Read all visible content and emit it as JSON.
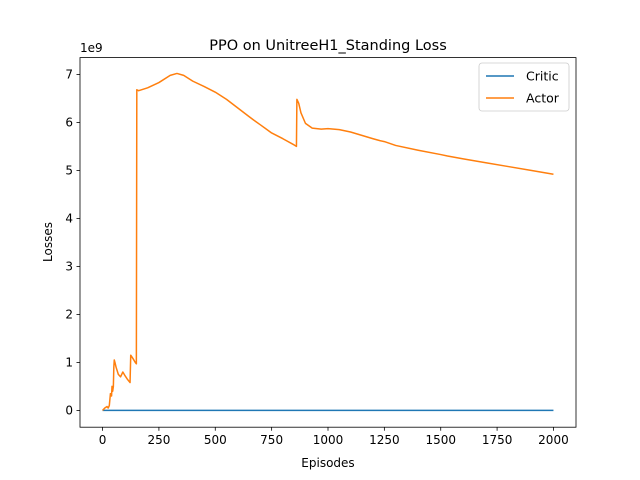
{
  "chart_data": {
    "type": "line",
    "title": "PPO on UnitreeH1_Standing Loss",
    "xlabel": "Episodes",
    "ylabel": "Losses",
    "y_scale_label": "1e9",
    "xlim": [
      -100,
      2100
    ],
    "ylim": [
      -0.35,
      7.35
    ],
    "x_ticks": [
      0,
      250,
      500,
      750,
      1000,
      1250,
      1500,
      1750,
      2000
    ],
    "y_ticks": [
      0,
      1,
      2,
      3,
      4,
      5,
      6,
      7
    ],
    "legend_position": "top-right",
    "grid": false,
    "series": [
      {
        "name": "Critic",
        "color": "#1f77b4",
        "points": [
          [
            0,
            0.0
          ],
          [
            2000,
            0.0
          ]
        ]
      },
      {
        "name": "Actor",
        "color": "#ff7f0e",
        "points": [
          [
            0,
            0.0
          ],
          [
            10,
            0.05
          ],
          [
            20,
            0.08
          ],
          [
            25,
            0.05
          ],
          [
            30,
            0.1
          ],
          [
            35,
            0.35
          ],
          [
            40,
            0.3
          ],
          [
            42,
            0.5
          ],
          [
            45,
            0.4
          ],
          [
            48,
            0.5
          ],
          [
            50,
            0.9
          ],
          [
            52,
            1.05
          ],
          [
            55,
            1.0
          ],
          [
            60,
            0.9
          ],
          [
            70,
            0.75
          ],
          [
            80,
            0.7
          ],
          [
            90,
            0.8
          ],
          [
            100,
            0.72
          ],
          [
            110,
            0.65
          ],
          [
            122,
            0.58
          ],
          [
            125,
            1.15
          ],
          [
            135,
            1.08
          ],
          [
            145,
            1.0
          ],
          [
            150,
            0.97
          ],
          [
            152,
            6.68
          ],
          [
            160,
            6.66
          ],
          [
            200,
            6.72
          ],
          [
            250,
            6.83
          ],
          [
            300,
            6.98
          ],
          [
            330,
            7.02
          ],
          [
            360,
            6.98
          ],
          [
            400,
            6.86
          ],
          [
            450,
            6.75
          ],
          [
            500,
            6.63
          ],
          [
            550,
            6.48
          ],
          [
            600,
            6.3
          ],
          [
            650,
            6.12
          ],
          [
            670,
            6.05
          ],
          [
            700,
            5.95
          ],
          [
            750,
            5.78
          ],
          [
            800,
            5.66
          ],
          [
            850,
            5.53
          ],
          [
            860,
            5.5
          ],
          [
            862,
            6.48
          ],
          [
            870,
            6.4
          ],
          [
            880,
            6.2
          ],
          [
            900,
            5.98
          ],
          [
            930,
            5.88
          ],
          [
            970,
            5.86
          ],
          [
            1000,
            5.87
          ],
          [
            1050,
            5.85
          ],
          [
            1100,
            5.8
          ],
          [
            1150,
            5.73
          ],
          [
            1200,
            5.66
          ],
          [
            1230,
            5.62
          ],
          [
            1250,
            5.6
          ],
          [
            1300,
            5.52
          ],
          [
            1400,
            5.42
          ],
          [
            1500,
            5.33
          ],
          [
            1530,
            5.3
          ],
          [
            1600,
            5.24
          ],
          [
            1700,
            5.16
          ],
          [
            1800,
            5.08
          ],
          [
            1900,
            5.0
          ],
          [
            2000,
            4.92
          ]
        ]
      }
    ]
  }
}
